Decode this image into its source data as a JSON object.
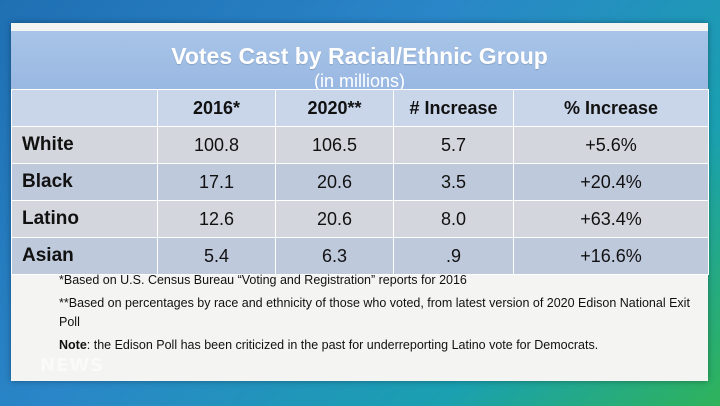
{
  "title": "Votes Cast by Racial/Ethnic Group",
  "subtitle": "(in millions)",
  "table": {
    "headers": [
      "",
      "2016*",
      "2020**",
      "# Increase",
      "% Increase"
    ],
    "rows": [
      [
        "White",
        "100.8",
        "106.5",
        "5.7",
        "+5.6%"
      ],
      [
        "Black",
        "17.1",
        "20.6",
        "3.5",
        "+20.4%"
      ],
      [
        "Latino",
        "12.6",
        "20.6",
        "8.0",
        "+63.4%"
      ],
      [
        "Asian",
        "5.4",
        "6.3",
        ".9",
        "+16.6%"
      ]
    ]
  },
  "notes": {
    "note1": "*Based on U.S. Census Bureau “Voting and Registration” reports for 2016",
    "note2": "**Based on percentages by race and ethnicity of those who voted, from latest version of 2020 Edison National Exit Poll",
    "note3_label": "Note",
    "note3_text": ": the Edison Poll has been criticized in the past for underreporting Latino vote for Democrats."
  },
  "watermark": "NEWS"
}
